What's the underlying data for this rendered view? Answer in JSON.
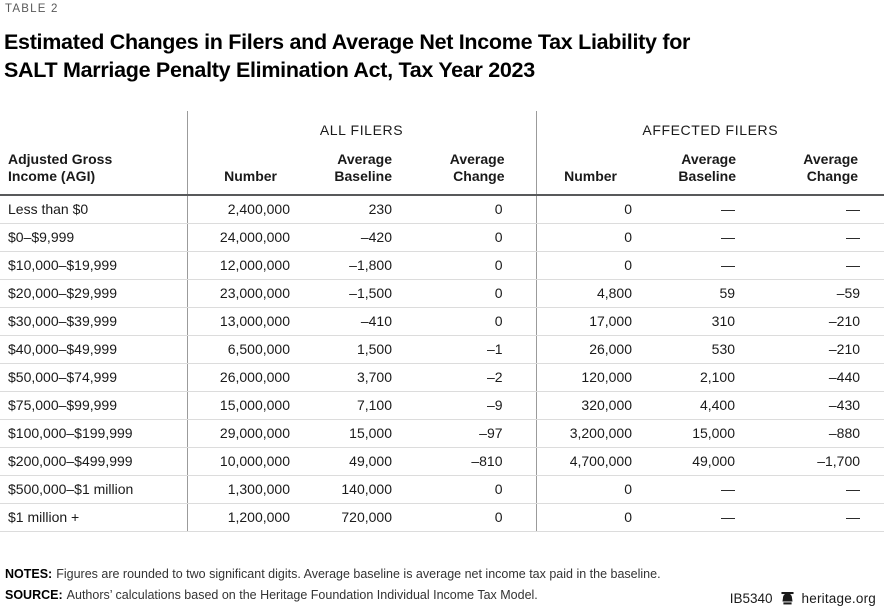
{
  "page": {
    "table_label": "TABLE 2",
    "title_line1": "Estimated Changes in Filers and Average Net Income Tax Liability for",
    "title_line2": "SALT Marriage Penalty Elimination Act, Tax Year 2023"
  },
  "table": {
    "group_all": "ALL FILERS",
    "group_affected": "AFFECTED FILERS",
    "headers": {
      "agi_line1": "Adjusted Gross",
      "agi_line2": "Income (AGI)",
      "number": "Number",
      "average": "Average",
      "baseline": "Baseline",
      "change": "Change"
    },
    "rows": [
      {
        "agi": "Less than $0",
        "all_number": "2,400,000",
        "all_baseline": "230",
        "all_change": "0",
        "aff_number": "0",
        "aff_baseline": "—",
        "aff_change": "—"
      },
      {
        "agi": "$0–$9,999",
        "all_number": "24,000,000",
        "all_baseline": "–420",
        "all_change": "0",
        "aff_number": "0",
        "aff_baseline": "—",
        "aff_change": "—"
      },
      {
        "agi": "$10,000–$19,999",
        "all_number": "12,000,000",
        "all_baseline": "–1,800",
        "all_change": "0",
        "aff_number": "0",
        "aff_baseline": "—",
        "aff_change": "—"
      },
      {
        "agi": "$20,000–$29,999",
        "all_number": "23,000,000",
        "all_baseline": "–1,500",
        "all_change": "0",
        "aff_number": "4,800",
        "aff_baseline": "59",
        "aff_change": "–59"
      },
      {
        "agi": "$30,000–$39,999",
        "all_number": "13,000,000",
        "all_baseline": "–410",
        "all_change": "0",
        "aff_number": "17,000",
        "aff_baseline": "310",
        "aff_change": "–210"
      },
      {
        "agi": "$40,000–$49,999",
        "all_number": "6,500,000",
        "all_baseline": "1,500",
        "all_change": "–1",
        "aff_number": "26,000",
        "aff_baseline": "530",
        "aff_change": "–210"
      },
      {
        "agi": "$50,000–$74,999",
        "all_number": "26,000,000",
        "all_baseline": "3,700",
        "all_change": "–2",
        "aff_number": "120,000",
        "aff_baseline": "2,100",
        "aff_change": "–440"
      },
      {
        "agi": "$75,000–$99,999",
        "all_number": "15,000,000",
        "all_baseline": "7,100",
        "all_change": "–9",
        "aff_number": "320,000",
        "aff_baseline": "4,400",
        "aff_change": "–430"
      },
      {
        "agi": "$100,000–$199,999",
        "all_number": "29,000,000",
        "all_baseline": "15,000",
        "all_change": "–97",
        "aff_number": "3,200,000",
        "aff_baseline": "15,000",
        "aff_change": "–880"
      },
      {
        "agi": "$200,000–$499,999",
        "all_number": "10,000,000",
        "all_baseline": "49,000",
        "all_change": "–810",
        "aff_number": "4,700,000",
        "aff_baseline": "49,000",
        "aff_change": "–1,700"
      },
      {
        "agi": "$500,000–$1 million",
        "all_number": "1,300,000",
        "all_baseline": "140,000",
        "all_change": "0",
        "aff_number": "0",
        "aff_baseline": "—",
        "aff_change": "—"
      },
      {
        "agi": "$1 million +",
        "all_number": "1,200,000",
        "all_baseline": "720,000",
        "all_change": "0",
        "aff_number": "0",
        "aff_baseline": "—",
        "aff_change": "—"
      }
    ]
  },
  "footer": {
    "notes_label": "NOTES:",
    "notes_text": "Figures are rounded to two significant digits. Average baseline is average net income tax paid in the baseline.",
    "source_label": "SOURCE:",
    "source_text": "Authors’ calculations based on the Heritage Foundation Individual Income Tax Model.",
    "doc_id": "IB5340",
    "brand": "heritage.org",
    "bell_icon": "liberty-bell-icon"
  },
  "colors": {
    "header_rule": "#58595b",
    "group_divider": "#9b9b9b",
    "row_line": "#dcdcdc",
    "text": "#1a1a1a",
    "muted_label": "#595959"
  }
}
